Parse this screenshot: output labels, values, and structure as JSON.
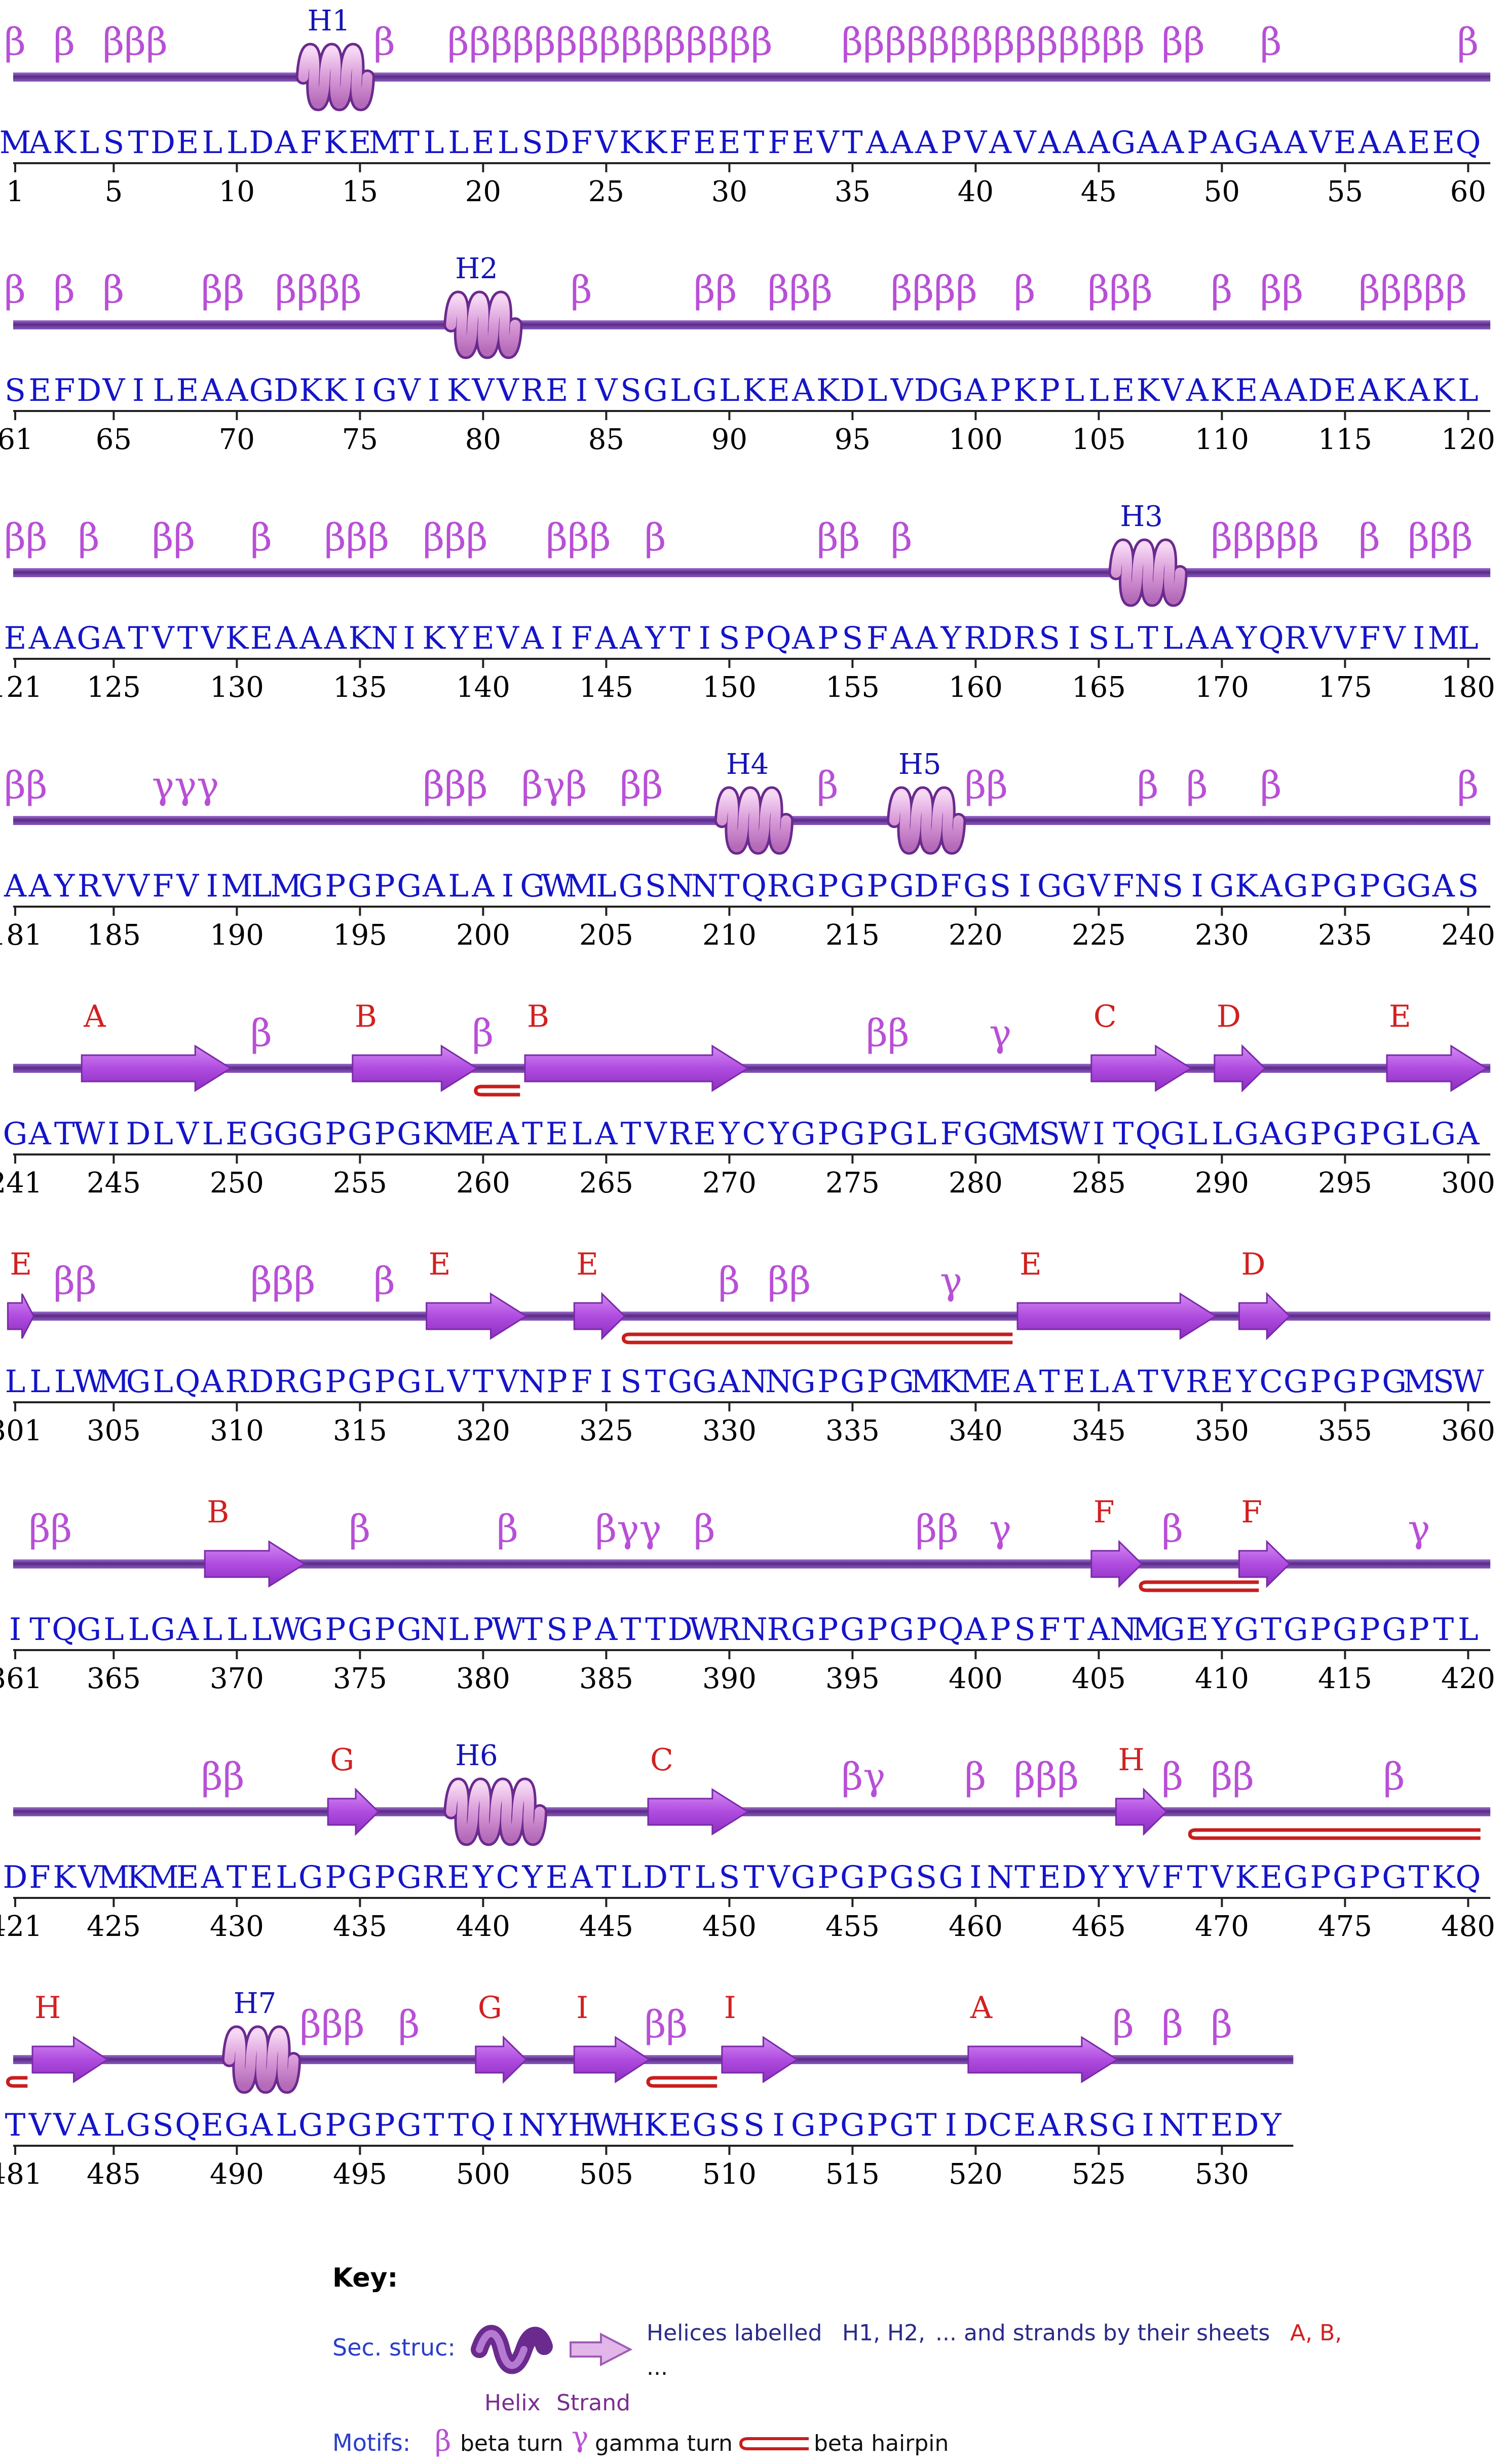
{
  "rows": [
    {
      "start": 1,
      "seq": "MAKLSTDELLDAFKEMTLLELSDFVKKFEETFEVTAAAPVAVAAAGAAPAGAAVEAAEEQ",
      "numbers": [
        "1",
        "5",
        "10",
        "15",
        "20",
        "25",
        "30",
        "35",
        "40",
        "45",
        "50",
        "55",
        "60"
      ],
      "turns": [
        {
          "res": 1,
          "t": "β"
        },
        {
          "res": 3,
          "t": "β"
        },
        {
          "res": 5,
          "t": "βββ"
        },
        {
          "res": 16,
          "t": "β"
        },
        {
          "res": 19,
          "t": "βββββββββββββββ"
        },
        {
          "res": 35,
          "t": "ββββββββββββββ"
        },
        {
          "res": 48,
          "t": "ββ"
        },
        {
          "res": 52,
          "t": "β"
        },
        {
          "res": 60,
          "t": "β"
        }
      ],
      "helices": [
        {
          "label": "H1",
          "res": 13,
          "len": 2
        }
      ],
      "strands": [],
      "hairpins": []
    },
    {
      "start": 61,
      "seq": "SEFDVILEAAGDKKIGVIKVVREIVSGLGLKEAKDLVDGAPKPLLEKVAKEAADEAKAKL",
      "numbers": [
        "61",
        "65",
        "70",
        "75",
        "80",
        "85",
        "90",
        "95",
        "100",
        "105",
        "110",
        "115",
        "120"
      ],
      "turns": [
        {
          "res": 61,
          "t": "β"
        },
        {
          "res": 63,
          "t": "β"
        },
        {
          "res": 65,
          "t": "β"
        },
        {
          "res": 69,
          "t": "ββ"
        },
        {
          "res": 72,
          "t": "ββββ"
        },
        {
          "res": 84,
          "t": "β"
        },
        {
          "res": 89,
          "t": "ββ"
        },
        {
          "res": 92,
          "t": "βββ"
        },
        {
          "res": 97,
          "t": "ββββ"
        },
        {
          "res": 102,
          "t": "β"
        },
        {
          "res": 105,
          "t": "βββ"
        },
        {
          "res": 110,
          "t": "β"
        },
        {
          "res": 112,
          "t": "ββ"
        },
        {
          "res": 116,
          "t": "βββββ"
        }
      ],
      "helices": [
        {
          "label": "H2",
          "res": 79,
          "len": 2
        }
      ],
      "strands": [],
      "hairpins": []
    },
    {
      "start": 121,
      "seq": "EAAGATVTVKEAAAKNIKYEVAIFAAYTISPQAPSFAAYRDRSISLTLAAYQRVVFVIML",
      "numbers": [
        "121",
        "125",
        "130",
        "135",
        "140",
        "145",
        "150",
        "155",
        "160",
        "165",
        "170",
        "175",
        "180"
      ],
      "turns": [
        {
          "res": 121,
          "t": "ββ"
        },
        {
          "res": 124,
          "t": "β"
        },
        {
          "res": 127,
          "t": "ββ"
        },
        {
          "res": 131,
          "t": "β"
        },
        {
          "res": 134,
          "t": "βββ"
        },
        {
          "res": 138,
          "t": "βββ"
        },
        {
          "res": 143,
          "t": "βββ"
        },
        {
          "res": 147,
          "t": "β"
        },
        {
          "res": 154,
          "t": "ββ"
        },
        {
          "res": 157,
          "t": "β"
        },
        {
          "res": 170,
          "t": "βββββ"
        },
        {
          "res": 176,
          "t": "β"
        },
        {
          "res": 178,
          "t": "βββ"
        }
      ],
      "helices": [
        {
          "label": "H3",
          "res": 166,
          "len": 2
        }
      ],
      "strands": [],
      "hairpins": []
    },
    {
      "start": 181,
      "seq": "AAYRVVFVIMLMGPGPGALAIGWMLGSNNTQRGPGPGDFGSIGGVFNSIGKAGPGPGGAS",
      "numbers": [
        "181",
        "185",
        "190",
        "195",
        "200",
        "205",
        "210",
        "215",
        "220",
        "225",
        "230",
        "235",
        "240"
      ],
      "turns": [
        {
          "res": 181,
          "t": "ββ"
        },
        {
          "res": 187,
          "t": "γγγ"
        },
        {
          "res": 198,
          "t": "βββ"
        },
        {
          "res": 202,
          "t": "βγβ"
        },
        {
          "res": 206,
          "t": "ββ"
        },
        {
          "res": 214,
          "t": "β"
        },
        {
          "res": 220,
          "t": "ββ"
        },
        {
          "res": 227,
          "t": "β"
        },
        {
          "res": 229,
          "t": "β"
        },
        {
          "res": 232,
          "t": "β"
        },
        {
          "res": 240,
          "t": "β"
        }
      ],
      "helices": [
        {
          "label": "H4",
          "res": 210,
          "len": 2
        },
        {
          "label": "H5",
          "res": 217,
          "len": 2
        }
      ],
      "strands": [],
      "hairpins": []
    },
    {
      "start": 241,
      "seq": "GATWIDLVLEGGGPGPGKMEATELATVREYCYGPGPGLFGGMSWITQGLLGAGPGPGLGA",
      "numbers": [
        "241",
        "245",
        "250",
        "255",
        "260",
        "265",
        "270",
        "275",
        "280",
        "285",
        "290",
        "295",
        "300"
      ],
      "turns": [
        {
          "res": 251,
          "t": "β"
        },
        {
          "res": 260,
          "t": "β"
        },
        {
          "res": 276,
          "t": "ββ"
        },
        {
          "res": 281,
          "t": "γ"
        }
      ],
      "helices": [],
      "strands": [
        {
          "label": "A",
          "s": 244,
          "e": 249
        },
        {
          "label": "B",
          "s": 255,
          "e": 259
        },
        {
          "label": "B",
          "s": 262,
          "e": 270
        },
        {
          "label": "C",
          "s": 285,
          "e": 288
        },
        {
          "label": "D",
          "s": 290,
          "e": 291
        },
        {
          "label": "E",
          "s": 297,
          "e": 300
        }
      ],
      "hairpins": [
        {
          "s": 260,
          "e": 261
        }
      ]
    },
    {
      "start": 301,
      "seq": "LLLWMGLQARDRGPGPGLVTVNPFISTGGANNGPGPGMKMEATELATVREYCGPGPGMSW",
      "numbers": [
        "301",
        "305",
        "310",
        "315",
        "320",
        "325",
        "330",
        "335",
        "340",
        "345",
        "350",
        "355",
        "360"
      ],
      "turns": [
        {
          "res": 303,
          "t": "ββ"
        },
        {
          "res": 311,
          "t": "βββ"
        },
        {
          "res": 316,
          "t": "β"
        },
        {
          "res": 330,
          "t": "β"
        },
        {
          "res": 332,
          "t": "ββ"
        },
        {
          "res": 339,
          "t": "γ"
        }
      ],
      "helices": [],
      "strands": [
        {
          "label": "E",
          "s": 301,
          "e": 301
        },
        {
          "label": "E",
          "s": 318,
          "e": 321
        },
        {
          "label": "E",
          "s": 324,
          "e": 325
        },
        {
          "label": "E",
          "s": 342,
          "e": 349
        },
        {
          "label": "D",
          "s": 351,
          "e": 352
        }
      ],
      "hairpins": [
        {
          "s": 326,
          "e": 341
        }
      ]
    },
    {
      "start": 361,
      "seq": "ITQGLLGALLLWGPGPGNLPWTSPATTDWRNRGPGPGPQAPSFTANMGEYGTGPGPGPTL",
      "numbers": [
        "361",
        "365",
        "370",
        "375",
        "380",
        "385",
        "390",
        "395",
        "400",
        "405",
        "410",
        "415",
        "420"
      ],
      "turns": [
        {
          "res": 362,
          "t": "ββ"
        },
        {
          "res": 375,
          "t": "β"
        },
        {
          "res": 381,
          "t": "β"
        },
        {
          "res": 385,
          "t": "βγγ"
        },
        {
          "res": 389,
          "t": "β"
        },
        {
          "res": 398,
          "t": "ββ"
        },
        {
          "res": 401,
          "t": "γ"
        },
        {
          "res": 408,
          "t": "β"
        },
        {
          "res": 418,
          "t": "γ"
        }
      ],
      "helices": [],
      "strands": [
        {
          "label": "B",
          "s": 369,
          "e": 372
        },
        {
          "label": "F",
          "s": 405,
          "e": 406
        },
        {
          "label": "F",
          "s": 411,
          "e": 412
        }
      ],
      "hairpins": [
        {
          "s": 407,
          "e": 411
        }
      ]
    },
    {
      "start": 421,
      "seq": "DFKVMKMEATELGPGPGREYCYEATLDTLSTVGPGPGSGINTEDYYVFTVKEGPGPGTKQ",
      "numbers": [
        "421",
        "425",
        "430",
        "435",
        "440",
        "445",
        "450",
        "455",
        "460",
        "465",
        "470",
        "475",
        "480"
      ],
      "turns": [
        {
          "res": 429,
          "t": "ββ"
        },
        {
          "res": 455,
          "t": "βγ"
        },
        {
          "res": 460,
          "t": "β"
        },
        {
          "res": 462,
          "t": "βββ"
        },
        {
          "res": 468,
          "t": "β"
        },
        {
          "res": 470,
          "t": "ββ"
        },
        {
          "res": 477,
          "t": "β"
        }
      ],
      "helices": [
        {
          "label": "H6",
          "res": 439,
          "len": 3
        }
      ],
      "strands": [
        {
          "label": "G",
          "s": 434,
          "e": 435
        },
        {
          "label": "C",
          "s": 447,
          "e": 450
        },
        {
          "label": "H",
          "s": 466,
          "e": 467
        }
      ],
      "hairpins": [
        {
          "s": 469,
          "e": 480
        }
      ]
    },
    {
      "start": 481,
      "seq": "TVVALGSQEGALGPGPGTTQINYHWHKEGSSIGPGPGTIDCEARSGINTEDY",
      "numbers": [
        "481",
        "485",
        "490",
        "495",
        "500",
        "505",
        "510",
        "515",
        "520",
        "525",
        "530"
      ],
      "turns": [
        {
          "res": 493,
          "t": "βββ"
        },
        {
          "res": 497,
          "t": "β"
        },
        {
          "res": 507,
          "t": "ββ"
        },
        {
          "res": 526,
          "t": "β"
        },
        {
          "res": 528,
          "t": "β"
        },
        {
          "res": 530,
          "t": "β"
        }
      ],
      "helices": [
        {
          "label": "H7",
          "res": 490,
          "len": 2
        }
      ],
      "strands": [
        {
          "label": "H",
          "s": 482,
          "e": 484
        },
        {
          "label": "G",
          "s": 500,
          "e": 501
        },
        {
          "label": "I",
          "s": 504,
          "e": 506
        },
        {
          "label": "I",
          "s": 510,
          "e": 512
        },
        {
          "label": "A",
          "s": 520,
          "e": 525
        }
      ],
      "hairpins": [
        {
          "s": 481,
          "e": 481
        },
        {
          "s": 507,
          "e": 509
        }
      ]
    }
  ],
  "key": {
    "title": "Key:",
    "sec_struc_label": "Sec. struc:",
    "sec_struc_text": "Helices labelled",
    "helix_labels_example": "H1, H2,",
    "strand_text_mid": "... and strands by their sheets",
    "strand_labels_example": "A, B,",
    "ellipsis": "...",
    "helix_caption": "Helix",
    "strand_caption": "Strand",
    "motifs_label": "Motifs:",
    "beta_symbol": "β",
    "beta_turn_text": "beta turn",
    "gamma_symbol": "γ",
    "gamma_turn_text": "gamma turn",
    "hairpin_text": "beta hairpin"
  },
  "colors": {
    "backbone": "#6b3d9a",
    "strand": "#b44fe2",
    "helix": "#e2a8e0",
    "hairpin": "#c81e1e",
    "sequence": "#1414c8",
    "turn": "#b84fd6"
  }
}
